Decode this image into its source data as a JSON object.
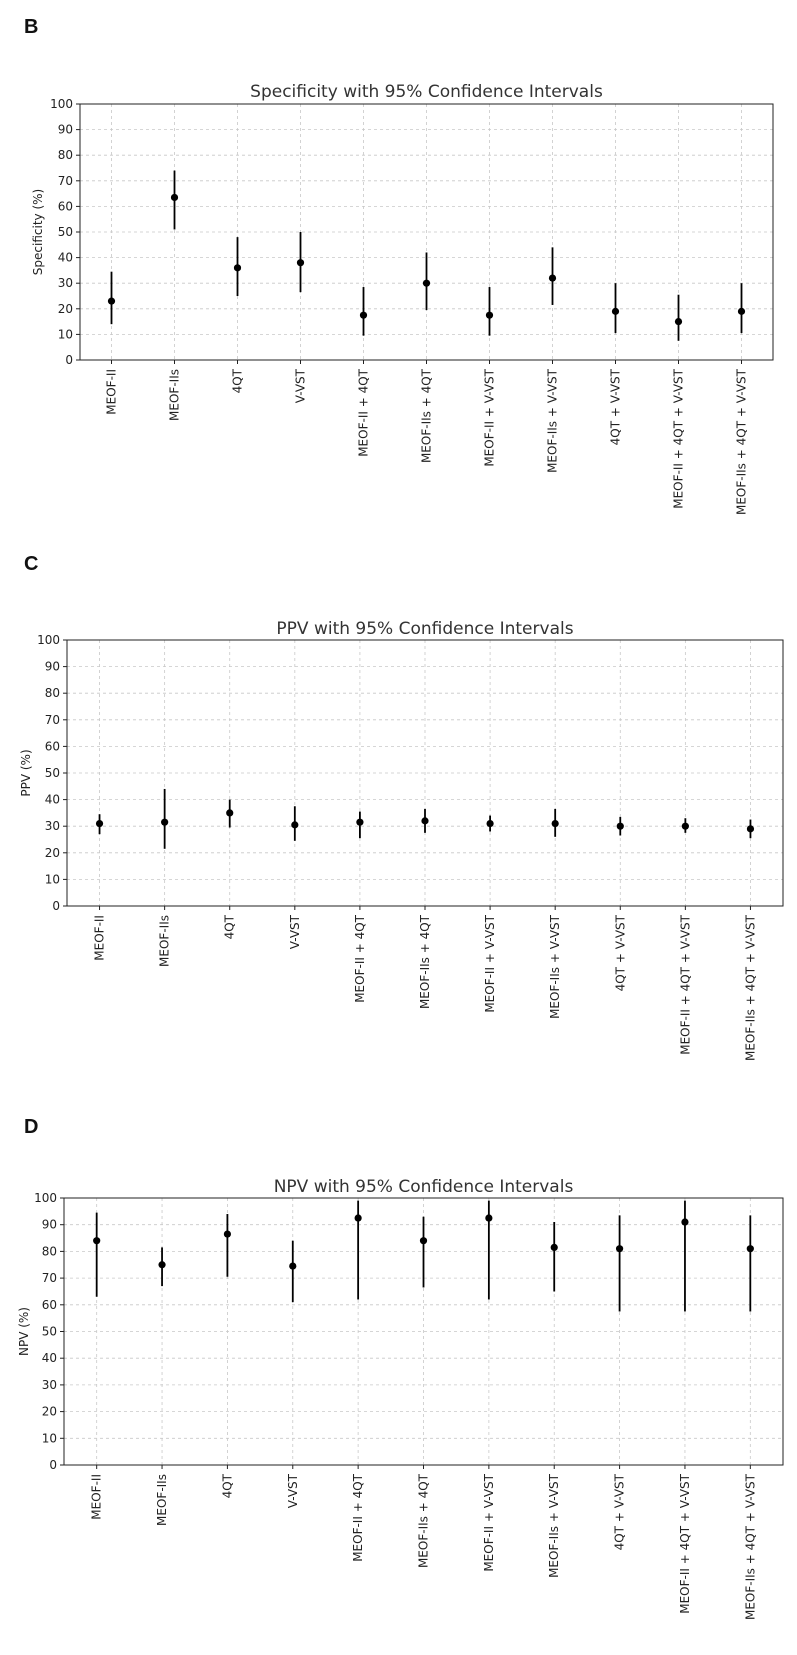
{
  "panels": [
    {
      "label": "B",
      "chart_data": {
        "type": "errorbar",
        "title": "Specificity with 95% Confidence Intervals",
        "xlabel": "",
        "ylabel": "Specificity (%)",
        "ylim": [
          0,
          100
        ],
        "yticks": [
          0,
          10,
          20,
          30,
          40,
          50,
          60,
          70,
          80,
          90,
          100
        ],
        "grid": true,
        "categories": [
          "MEOF-II",
          "MEOF-IIs",
          "4QT",
          "V-VST",
          "MEOF-II + 4QT",
          "MEOF-IIs + 4QT",
          "MEOF-II + V-VST",
          "MEOF-IIs + V-VST",
          "4QT + V-VST",
          "MEOF-II + 4QT + V-VST",
          "MEOF-IIs + 4QT + V-VST"
        ],
        "values": [
          23,
          63.5,
          36,
          38,
          17.5,
          30,
          17.5,
          32,
          19,
          15,
          19
        ],
        "lower": [
          14,
          51,
          25,
          26.5,
          9.5,
          19.5,
          9.5,
          21.5,
          10.5,
          7.5,
          10.5
        ],
        "upper": [
          34.5,
          74,
          48,
          50,
          28.5,
          42,
          28.5,
          44,
          30,
          25.5,
          30
        ]
      }
    },
    {
      "label": "C",
      "chart_data": {
        "type": "errorbar",
        "title": "PPV with 95% Confidence Intervals",
        "xlabel": "",
        "ylabel": "PPV (%)",
        "ylim": [
          0,
          100
        ],
        "yticks": [
          0,
          10,
          20,
          30,
          40,
          50,
          60,
          70,
          80,
          90,
          100
        ],
        "grid": true,
        "categories": [
          "MEOF-II",
          "MEOF-IIs",
          "4QT",
          "V-VST",
          "MEOF-II + 4QT",
          "MEOF-IIs + 4QT",
          "MEOF-II + V-VST",
          "MEOF-IIs + V-VST",
          "4QT + V-VST",
          "MEOF-II + 4QT + V-VST",
          "MEOF-IIs + 4QT + V-VST"
        ],
        "values": [
          31,
          31.5,
          35,
          30.5,
          31.5,
          32,
          31,
          31,
          30,
          30,
          29
        ],
        "lower": [
          27,
          21.5,
          29.5,
          24.5,
          25.5,
          27.5,
          28,
          26,
          26.5,
          27.5,
          25.5
        ],
        "upper": [
          34.5,
          44,
          40,
          37.5,
          35.5,
          36.5,
          34,
          36.5,
          33.5,
          33,
          32.5
        ]
      }
    },
    {
      "label": "D",
      "chart_data": {
        "type": "errorbar",
        "title": "NPV with 95% Confidence Intervals",
        "xlabel": "",
        "ylabel": "NPV (%)",
        "ylim": [
          0,
          100
        ],
        "yticks": [
          0,
          10,
          20,
          30,
          40,
          50,
          60,
          70,
          80,
          90,
          100
        ],
        "grid": true,
        "categories": [
          "MEOF-II",
          "MEOF-IIs",
          "4QT",
          "V-VST",
          "MEOF-II + 4QT",
          "MEOF-IIs + 4QT",
          "MEOF-II + V-VST",
          "MEOF-IIs + V-VST",
          "4QT + V-VST",
          "MEOF-II + 4QT + V-VST",
          "MEOF-IIs + 4QT + V-VST"
        ],
        "values": [
          84,
          75,
          86.5,
          74.5,
          92.5,
          84,
          92.5,
          81.5,
          81,
          91,
          81
        ],
        "lower": [
          63,
          67,
          70.5,
          61,
          62,
          66.5,
          62,
          65,
          57.5,
          57.5,
          57.5
        ],
        "upper": [
          94.5,
          81.5,
          94,
          84,
          99,
          93,
          99,
          91,
          93.5,
          99,
          93.5
        ]
      }
    }
  ]
}
